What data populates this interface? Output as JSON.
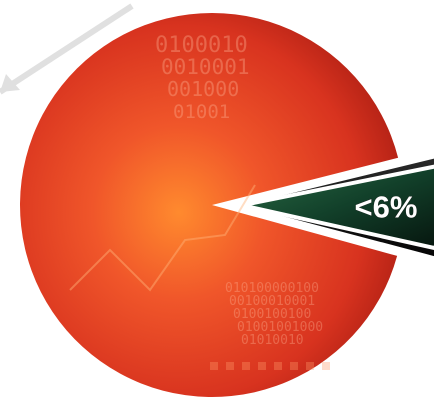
{
  "chart_data": {
    "type": "pie",
    "slices": [
      {
        "label": "",
        "value": 94,
        "color": "#e8452a"
      },
      {
        "label": "<6%",
        "value": 6,
        "color": "#1f5a3a",
        "exploded": true
      }
    ],
    "title": "",
    "legend": "none",
    "data_labels": [
      "<6%"
    ]
  },
  "decor": {
    "binary_top": [
      "0100010",
      "0010001",
      "001000",
      "01001"
    ],
    "binary_bottom": [
      "010100000100",
      "00100010001",
      "0100100100",
      "01001001000",
      "01010010"
    ]
  }
}
